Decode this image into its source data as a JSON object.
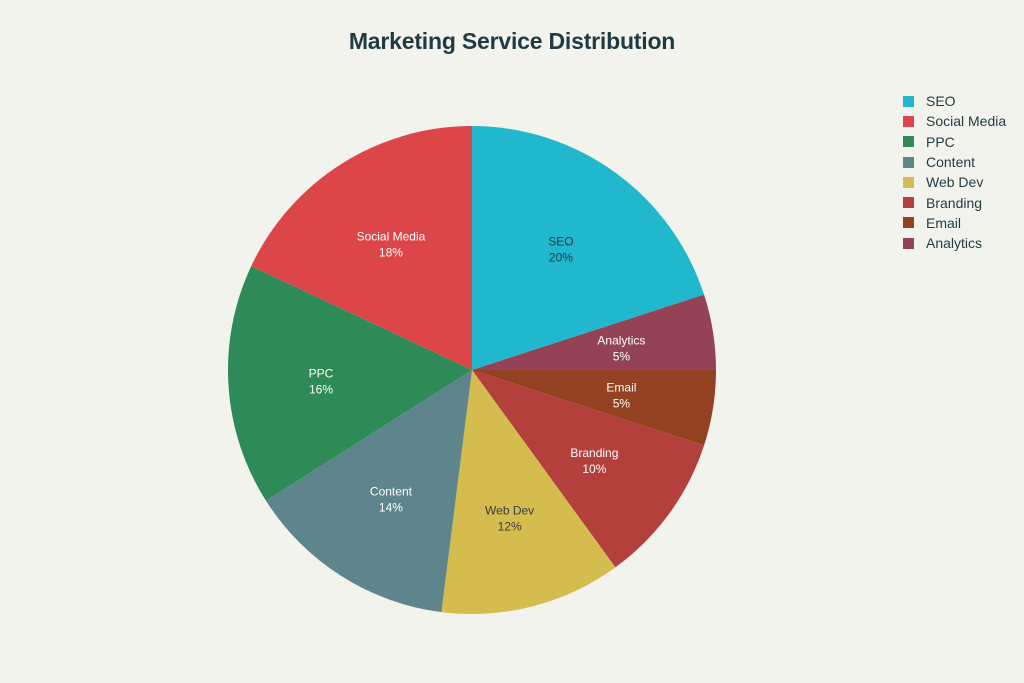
{
  "chart_data": {
    "type": "pie",
    "title": "Marketing Service Distribution",
    "categories": [
      "SEO",
      "Social Media",
      "PPC",
      "Content",
      "Web Dev",
      "Branding",
      "Email",
      "Analytics"
    ],
    "values": [
      20,
      18,
      16,
      14,
      12,
      10,
      5,
      5
    ],
    "units": "%",
    "colors": [
      "#21b7cd",
      "#dc4649",
      "#2e8b57",
      "#5e858c",
      "#d4bc4f",
      "#b4403e",
      "#934121",
      "#944357"
    ],
    "label_colors": [
      "#1f3b42",
      "#ffffff",
      "#ffffff",
      "#ffffff",
      "#3d3d3d",
      "#ffffff",
      "#ffffff",
      "#ffffff"
    ],
    "legend_position": "right",
    "direction": "clockwise-from-top",
    "slice_order": [
      "SEO",
      "Analytics",
      "Email",
      "Branding",
      "Web Dev",
      "Content",
      "PPC",
      "Social Media"
    ]
  },
  "title": "Marketing Service Distribution",
  "legend": [
    {
      "label": "SEO",
      "color": "#21b7cd"
    },
    {
      "label": "Social Media",
      "color": "#dc4649"
    },
    {
      "label": "PPC",
      "color": "#2e8b57"
    },
    {
      "label": "Content",
      "color": "#5e858c"
    },
    {
      "label": "Web Dev",
      "color": "#d4bc4f"
    },
    {
      "label": "Branding",
      "color": "#b4403e"
    },
    {
      "label": "Email",
      "color": "#934121"
    },
    {
      "label": "Analytics",
      "color": "#944357"
    }
  ]
}
